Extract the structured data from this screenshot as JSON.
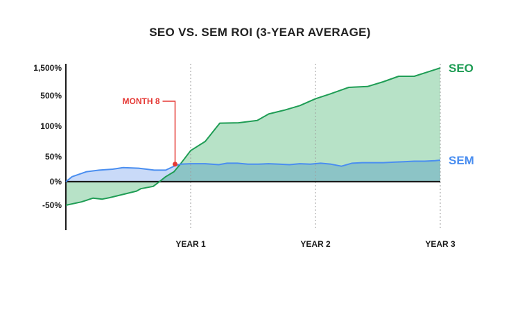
{
  "chart_data": {
    "type": "area",
    "title": "SEO VS. SEM ROI (3-YEAR AVERAGE)",
    "xlabel": "",
    "ylabel": "",
    "x_unit": "months",
    "x_range": [
      0,
      36
    ],
    "x_ticks": [
      {
        "x": 12,
        "label": "YEAR 1"
      },
      {
        "x": 24,
        "label": "YEAR 2"
      },
      {
        "x": 36,
        "label": "YEAR 3"
      }
    ],
    "y_ticks": [
      {
        "value": -50,
        "label": "-50%"
      },
      {
        "value": 0,
        "label": "0%"
      },
      {
        "value": 50,
        "label": "50%"
      },
      {
        "value": 100,
        "label": "100%"
      },
      {
        "value": 500,
        "label": "500%"
      },
      {
        "value": 1500,
        "label": "1,500%"
      }
    ],
    "series": [
      {
        "name": "SEO",
        "color": "#1f9d55",
        "fill": "#b7e2c7",
        "x": [
          0,
          1.5,
          2.6,
          3.5,
          4.2,
          5.5,
          6.8,
          7.2,
          8.4,
          9.0,
          9.6,
          10.4,
          11.0,
          12.0,
          13.4,
          14.8,
          16.6,
          18.4,
          19.5,
          21.0,
          22.5,
          24.0,
          25.4,
          27.2,
          29.0,
          30.5,
          32.0,
          33.5,
          35.0,
          36.0
        ],
        "y": [
          -50,
          -43,
          -35,
          -37,
          -34,
          -27,
          -20,
          -15,
          -10,
          0,
          10,
          20,
          35,
          60,
          75,
          140,
          145,
          175,
          260,
          310,
          370,
          460,
          560,
          800,
          830,
          1000,
          1200,
          1200,
          1380,
          1500
        ]
      },
      {
        "name": "SEM",
        "color": "#4a8ef0",
        "fill": "#c9daf8",
        "x": [
          0,
          0.6,
          2.0,
          3.2,
          4.5,
          5.5,
          7.0,
          8.5,
          9.6,
          10.5,
          11.0,
          12.0,
          13.4,
          14.7,
          15.5,
          16.5,
          17.5,
          18.5,
          19.5,
          20.5,
          21.5,
          22.5,
          23.5,
          24.5,
          25.5,
          26.5,
          27.5,
          28.5,
          29.5,
          30.5,
          31.5,
          32.5,
          33.5,
          34.5,
          35.5,
          36.0
        ],
        "y": [
          0,
          10,
          20,
          23,
          25,
          28,
          27,
          23,
          23,
          32,
          35,
          36,
          36,
          34,
          37,
          37,
          35,
          35,
          36,
          35,
          34,
          36,
          35,
          37,
          35,
          31,
          37,
          38,
          38,
          38,
          39,
          40,
          41,
          41,
          42,
          43
        ]
      }
    ],
    "annotations": [
      {
        "label": "MONTH 8",
        "x": 10.5,
        "y": 35,
        "color": "#e53935"
      }
    ],
    "series_labels": {
      "SEO": "SEO",
      "SEM": "SEM"
    },
    "scale": "piecewise (uneven spacing between labeled ticks)",
    "grid": "vertical dotted lines at each year tick",
    "legend": "series names at right end of each line",
    "colors": {
      "seo_line": "#1f9d55",
      "seo_fill": "#b7e2c7",
      "sem_line": "#4a8ef0",
      "sem_fill": "#c9daf8",
      "overlap_fill": "#8cc4c6",
      "axis": "#1a1a1a",
      "grid": "#9e9e9e",
      "annotation": "#e53935"
    }
  }
}
